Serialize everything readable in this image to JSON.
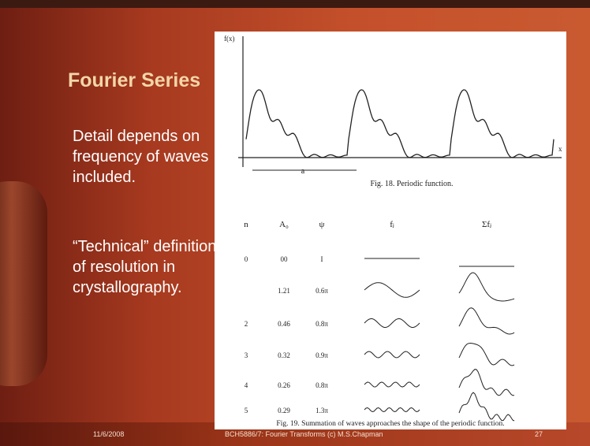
{
  "header": {
    "title": "Fourier Series"
  },
  "body": {
    "paragraphs": [
      "Detail depends on frequency of waves included.",
      "“Technical” definition of resolution in crystallography."
    ]
  },
  "figure": {
    "axis_y": "f(x)",
    "axis_x": "x",
    "period_label": "a",
    "caption_top": "Fig. 18. Periodic function.",
    "table": {
      "headers": [
        "n",
        "A₀",
        "ψ",
        "fⱼ",
        "Σfⱼ"
      ],
      "rows": [
        [
          "0",
          "00",
          "I"
        ],
        [
          null,
          "1.21",
          "0.6π"
        ],
        [
          "2",
          "0.46",
          "0.8π"
        ],
        [
          "3",
          "0.32",
          "0.9π"
        ],
        [
          "4",
          "0.26",
          "0.8π"
        ],
        [
          "5",
          "0.29",
          "1.3π"
        ]
      ]
    },
    "caption_bottom": "Fig. 19. Summation of waves approaches the shape of the periodic function."
  },
  "footer": {
    "date": "11/6/2008",
    "text": "BCH5886/7: Fourier Transforms (c) M.S.Chapman",
    "page": "27"
  }
}
